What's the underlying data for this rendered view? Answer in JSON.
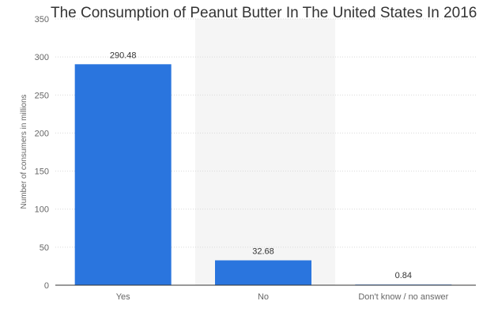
{
  "chart_data": {
    "type": "bar",
    "title": "The Consumption of Peanut Butter In The United States In 2016",
    "ylabel": "Number of consumers in millions",
    "xlabel": "",
    "categories": [
      "Yes",
      "No",
      "Don't know / no answer"
    ],
    "values": [
      290.48,
      32.68,
      0.84
    ],
    "value_labels": [
      "290.48",
      "32.68",
      "0.84"
    ],
    "ylim": [
      0,
      350
    ],
    "yticks": [
      0,
      50,
      100,
      150,
      200,
      250,
      300,
      350
    ],
    "grid": true,
    "bar_color": "#2a75de",
    "highlight_band_color": "#f5f5f5"
  }
}
